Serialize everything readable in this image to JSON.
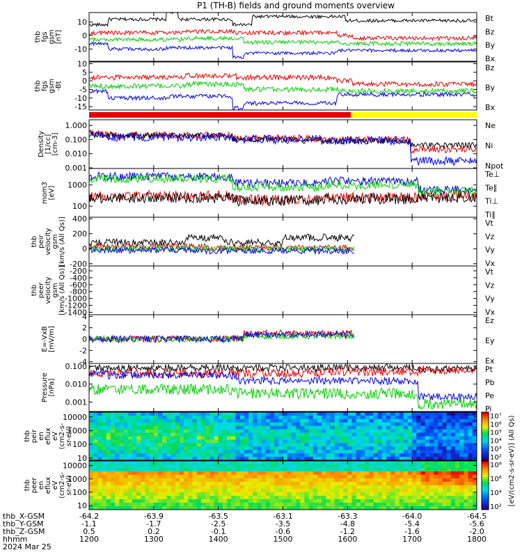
{
  "title": "P1 (TH-B) fields and ground moments overview",
  "colors": {
    "black": "#000000",
    "red": "#e00000",
    "green": "#00cc00",
    "blue": "#0000dd",
    "yellow": "#ffff00"
  },
  "chart_data": [
    {
      "id": "fgs",
      "type": "line",
      "ylabel": [
        "thb",
        "fgs",
        "gsm",
        "[nT]"
      ],
      "ticks": [
        "10",
        "0",
        "-10"
      ],
      "tick_values": [
        10,
        0,
        -10
      ],
      "ylim": [
        -19,
        17
      ],
      "legend": [
        {
          "name": "Bt",
          "color": "#000000"
        },
        {
          "name": "Bz",
          "color": "#e00000"
        },
        {
          "name": "By",
          "color": "#00cc00"
        },
        {
          "name": "Bx",
          "color": "#0000dd"
        }
      ]
    },
    {
      "id": "fgs_no_bt",
      "type": "line",
      "ylabel": [
        "thb",
        "fgs",
        "gsm",
        "-Bt"
      ],
      "ticks": [
        "10",
        "5",
        "0",
        "-5",
        "-10",
        "-15"
      ],
      "tick_values": [
        10,
        5,
        0,
        -5,
        -10,
        -15
      ],
      "ylim": [
        -17,
        11
      ],
      "legend": [
        {
          "name": "Bz",
          "color": "#e00000"
        },
        {
          "name": "By",
          "color": "#00cc00"
        },
        {
          "name": "Bx",
          "color": "#0000dd"
        }
      ]
    },
    {
      "id": "mode_bar",
      "type": "bar",
      "segments": [
        {
          "from": 1200,
          "to": 1605,
          "color": "#e00000"
        },
        {
          "from": 1605,
          "to": 1800,
          "color": "#ffff00"
        }
      ]
    },
    {
      "id": "density",
      "type": "line",
      "log": true,
      "ylabel": [
        "Density",
        "[1/cc]",
        "[cm-3]"
      ],
      "ticks": [
        "1.000",
        "0.100",
        "0.010",
        "0.001"
      ],
      "tick_values": [
        1,
        0.1,
        0.01,
        0.001
      ],
      "ylim": [
        0.0009,
        2.5
      ],
      "legend": [
        {
          "name": "Ne",
          "color": "#e00000"
        },
        {
          "name": "Ni",
          "color": "#000000"
        },
        {
          "name": "Npot",
          "color": "#0000dd"
        }
      ]
    },
    {
      "id": "temperature",
      "type": "line",
      "log": true,
      "ylabel": [
        "mom3",
        "[eV]"
      ],
      "ticks": [
        "1000",
        "100"
      ],
      "tick_values": [
        1000,
        100
      ],
      "ylim": [
        30,
        6000
      ],
      "legend": [
        {
          "name": "Te⊥",
          "color": "#e00000"
        },
        {
          "name": "Te∥",
          "color": "#000000"
        },
        {
          "name": "Ti⊥",
          "color": "#0000dd"
        },
        {
          "name": "Ti∥",
          "color": "#00cc00"
        }
      ]
    },
    {
      "id": "peir_velocity",
      "type": "line",
      "ylabel": [
        "thb",
        "peir",
        "velocity",
        "gsm",
        "[km/s (All Qs)]"
      ],
      "ticks": [
        "400",
        "200",
        "0",
        "-200"
      ],
      "tick_values": [
        400,
        200,
        0,
        -200
      ],
      "ylim": [
        -230,
        420
      ],
      "legend": [
        {
          "name": "Vt",
          "color": "#000000"
        },
        {
          "name": "Vz",
          "color": "#e00000"
        },
        {
          "name": "Vy",
          "color": "#00cc00"
        },
        {
          "name": "Vx",
          "color": "#0000dd"
        }
      ]
    },
    {
      "id": "peer_velocity",
      "type": "line",
      "ylabel": [
        "thb",
        "peer",
        "velocity",
        "gsm",
        "[km/s (All Qs)]"
      ],
      "ticks": [
        "-200",
        "-400",
        "-600",
        "-800",
        "-1000",
        "-1200",
        "-1400"
      ],
      "tick_values": [
        -200,
        -400,
        -600,
        -800,
        -1000,
        -1200,
        -1400
      ],
      "ylim": [
        -1470,
        -60
      ],
      "legend": [
        {
          "name": "Vt",
          "color": "#000000"
        },
        {
          "name": "Vz",
          "color": "#e00000"
        },
        {
          "name": "Vy",
          "color": "#00cc00"
        },
        {
          "name": "Vx",
          "color": "#0000dd"
        }
      ]
    },
    {
      "id": "efield",
      "type": "line",
      "ylabel": [
        "E=-VxB",
        "[mV/m]"
      ],
      "ticks": [
        "4",
        "2",
        "0",
        "-2",
        "-4"
      ],
      "tick_values": [
        4,
        2,
        0,
        -2,
        -4
      ],
      "ylim": [
        -4.3,
        4.3
      ],
      "legend": [
        {
          "name": "Ez",
          "color": "#e00000"
        },
        {
          "name": "Ey",
          "color": "#00cc00"
        },
        {
          "name": "Ex",
          "color": "#0000dd"
        }
      ]
    },
    {
      "id": "pressure",
      "type": "line",
      "log": true,
      "ylabel": [
        "Pressure",
        "[nPa]"
      ],
      "ticks": [
        "0.100",
        "0.010",
        "0.001"
      ],
      "tick_values": [
        0.1,
        0.01,
        0.001
      ],
      "ylim": [
        0.0003,
        0.14
      ],
      "legend": [
        {
          "name": "Pt",
          "color": "#000000"
        },
        {
          "name": "Pb",
          "color": "#e00000"
        },
        {
          "name": "Pe",
          "color": "#00cc00"
        },
        {
          "name": "Pi",
          "color": "#0000dd"
        }
      ]
    },
    {
      "id": "peir_spectrogram",
      "type": "heatmap",
      "log": true,
      "ylabel": [
        "thb",
        "peir",
        "en",
        "eflux",
        "eV",
        "(cm2-s-",
        "sr-eV)"
      ],
      "ticks": [
        "10000",
        "1000",
        "100",
        "10"
      ],
      "tick_values": [
        10000,
        1000,
        100,
        10
      ],
      "ylim": [
        7,
        22000
      ],
      "colorbar_ticks": [
        "10⁷",
        "10⁶",
        "10⁵",
        "10⁴",
        "10³",
        "10²"
      ]
    },
    {
      "id": "peer_spectrogram",
      "type": "heatmap",
      "log": true,
      "ylabel": [
        "thb",
        "peer",
        "en",
        "eflux",
        "eV",
        "(cm2-s-",
        "sr-eV)"
      ],
      "ticks": [
        "10000",
        "1000",
        "100",
        "10"
      ],
      "tick_values": [
        10000,
        1000,
        100,
        10
      ],
      "ylim": [
        5,
        22000
      ],
      "colorbar_ticks": [
        "10⁸",
        "10⁶",
        "10⁴",
        "10²"
      ]
    }
  ],
  "colorbar_label": "[eV/(cm2-s-sr-eV)] (All Qs)",
  "x_axis": {
    "rows": [
      {
        "label": "thb_X-GSM",
        "values": [
          "-64.2",
          "-63.9",
          "-63.5",
          "-63.1",
          "-63.3",
          "-64.0",
          "-64.5"
        ]
      },
      {
        "label": "thb_Y-GSM",
        "values": [
          "-1.1",
          "-1.7",
          "-2.5",
          "-3.5",
          "-4.8",
          "-5.4",
          "-5.6"
        ]
      },
      {
        "label": "thb_Z-GSM",
        "values": [
          "0.5",
          "0.2",
          "-0.1",
          "-0.6",
          "-1.2",
          "-1.6",
          "-2.0"
        ]
      },
      {
        "label": "hhmm",
        "values": [
          "1200",
          "1300",
          "1400",
          "1500",
          "1600",
          "1700",
          "1800"
        ]
      }
    ],
    "date": "2024 Mar 25"
  }
}
